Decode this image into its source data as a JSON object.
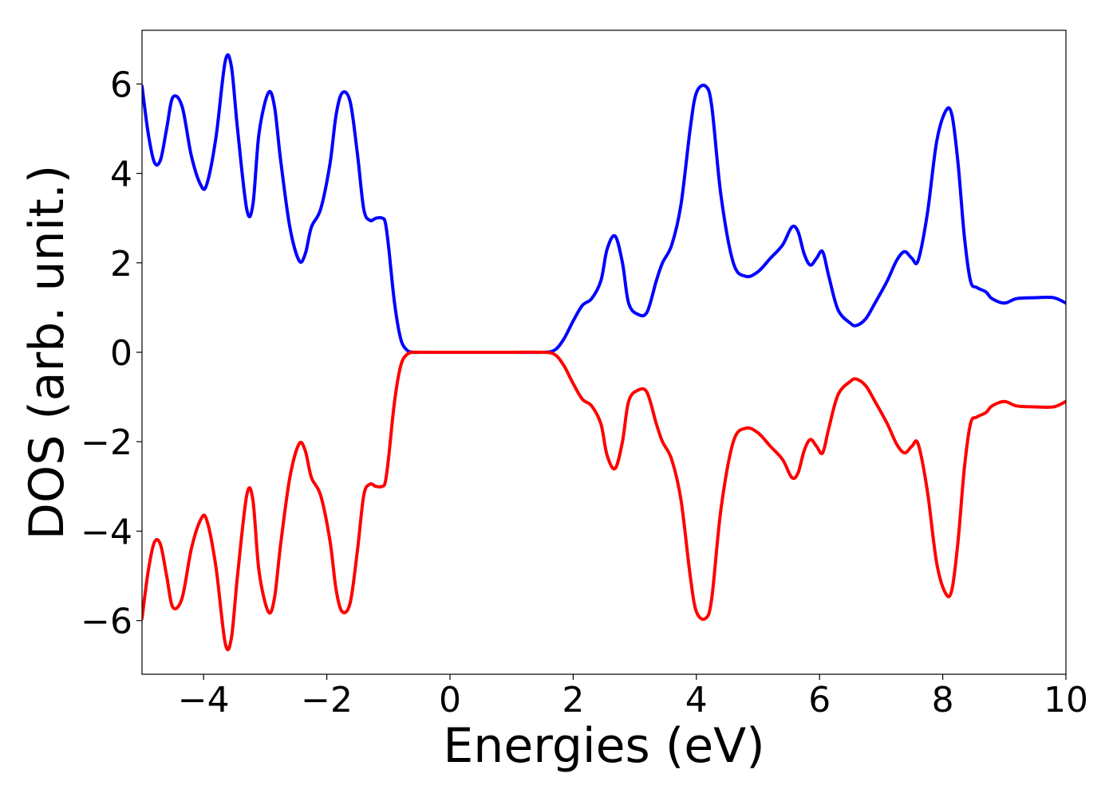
{
  "chart_data": {
    "type": "line",
    "xlabel": "Energies (eV)",
    "ylabel": "DOS (arb. unit.)",
    "xlim": [
      -5,
      10
    ],
    "ylim": [
      -7.2,
      7.2
    ],
    "grid": false,
    "xticks": [
      -4,
      -2,
      0,
      2,
      4,
      6,
      8,
      10
    ],
    "xtick_labels": [
      "−4",
      "−2",
      "0",
      "2",
      "4",
      "6",
      "8",
      "10"
    ],
    "yticks": [
      -6,
      -4,
      -2,
      0,
      2,
      4,
      6
    ],
    "ytick_labels": [
      "−6",
      "−4",
      "−2",
      "0",
      "2",
      "4",
      "6"
    ],
    "series": [
      {
        "color": "#0000ff",
        "x": [
          -5.0,
          -4.9,
          -4.8,
          -4.7,
          -4.6,
          -4.5,
          -4.35,
          -4.2,
          -4.05,
          -3.95,
          -3.8,
          -3.65,
          -3.55,
          -3.45,
          -3.3,
          -3.2,
          -3.1,
          -2.95,
          -2.85,
          -2.75,
          -2.6,
          -2.45,
          -2.35,
          -2.25,
          -2.1,
          -1.95,
          -1.85,
          -1.75,
          -1.62,
          -1.5,
          -1.4,
          -1.3,
          -1.2,
          -1.1,
          -1.05,
          -1.0,
          -0.9,
          -0.8,
          -0.7,
          -0.6,
          -0.5,
          -0.4,
          0.0,
          1.0,
          1.5,
          1.7,
          1.85,
          2.0,
          2.15,
          2.3,
          2.45,
          2.55,
          2.68,
          2.8,
          2.9,
          3.05,
          3.2,
          3.35,
          3.45,
          3.6,
          3.75,
          3.9,
          4.0,
          4.15,
          4.25,
          4.4,
          4.6,
          4.8,
          5.0,
          5.2,
          5.4,
          5.55,
          5.65,
          5.75,
          5.85,
          5.95,
          6.05,
          6.15,
          6.3,
          6.5,
          6.6,
          6.75,
          6.9,
          7.1,
          7.25,
          7.38,
          7.5,
          7.6,
          7.75,
          7.9,
          8.05,
          8.15,
          8.25,
          8.35,
          8.45,
          8.55,
          8.7,
          8.8,
          9.0,
          9.2,
          9.5,
          9.8,
          10.0
        ],
        "y": [
          5.95,
          4.9,
          4.25,
          4.3,
          5.0,
          5.7,
          5.5,
          4.4,
          3.75,
          3.75,
          4.8,
          6.5,
          6.4,
          5.0,
          3.2,
          3.3,
          4.9,
          5.8,
          5.5,
          4.3,
          2.8,
          2.05,
          2.2,
          2.8,
          3.2,
          4.2,
          5.3,
          5.8,
          5.6,
          4.4,
          3.2,
          2.95,
          3.0,
          3.0,
          2.9,
          2.4,
          1.1,
          0.3,
          0.05,
          0.0,
          0.0,
          0.0,
          0.0,
          0.0,
          0.0,
          0.05,
          0.3,
          0.7,
          1.05,
          1.2,
          1.6,
          2.3,
          2.6,
          2.0,
          1.1,
          0.85,
          0.9,
          1.6,
          2.0,
          2.4,
          3.3,
          5.0,
          5.8,
          5.95,
          5.5,
          3.5,
          2.0,
          1.7,
          1.8,
          2.1,
          2.4,
          2.8,
          2.7,
          2.2,
          1.95,
          2.1,
          2.25,
          1.7,
          0.95,
          0.65,
          0.6,
          0.75,
          1.1,
          1.6,
          2.05,
          2.25,
          2.1,
          2.05,
          3.1,
          4.7,
          5.4,
          5.3,
          4.2,
          2.6,
          1.6,
          1.45,
          1.35,
          1.2,
          1.1,
          1.2,
          1.22,
          1.22,
          1.1
        ]
      },
      {
        "color": "#ff0000",
        "x": [
          -5.0,
          -4.9,
          -4.8,
          -4.7,
          -4.6,
          -4.5,
          -4.35,
          -4.2,
          -4.05,
          -3.95,
          -3.8,
          -3.65,
          -3.55,
          -3.45,
          -3.3,
          -3.2,
          -3.1,
          -2.95,
          -2.85,
          -2.75,
          -2.6,
          -2.45,
          -2.35,
          -2.25,
          -2.1,
          -1.95,
          -1.85,
          -1.75,
          -1.62,
          -1.5,
          -1.4,
          -1.3,
          -1.2,
          -1.1,
          -1.05,
          -1.0,
          -0.9,
          -0.8,
          -0.7,
          -0.6,
          -0.5,
          -0.4,
          0.0,
          1.0,
          1.5,
          1.7,
          1.85,
          2.0,
          2.15,
          2.3,
          2.45,
          2.55,
          2.68,
          2.8,
          2.9,
          3.05,
          3.2,
          3.35,
          3.45,
          3.6,
          3.75,
          3.9,
          4.0,
          4.15,
          4.25,
          4.4,
          4.6,
          4.8,
          5.0,
          5.2,
          5.4,
          5.55,
          5.65,
          5.75,
          5.85,
          5.95,
          6.05,
          6.15,
          6.3,
          6.5,
          6.6,
          6.75,
          6.9,
          7.1,
          7.25,
          7.38,
          7.5,
          7.6,
          7.75,
          7.9,
          8.05,
          8.15,
          8.25,
          8.35,
          8.45,
          8.55,
          8.7,
          8.8,
          9.0,
          9.2,
          9.5,
          9.8,
          10.0
        ],
        "y": [
          -5.95,
          -4.9,
          -4.25,
          -4.3,
          -5.0,
          -5.7,
          -5.5,
          -4.4,
          -3.75,
          -3.75,
          -4.8,
          -6.5,
          -6.4,
          -5.0,
          -3.2,
          -3.3,
          -4.9,
          -5.8,
          -5.5,
          -4.3,
          -2.8,
          -2.05,
          -2.2,
          -2.8,
          -3.2,
          -4.2,
          -5.3,
          -5.8,
          -5.6,
          -4.4,
          -3.2,
          -2.95,
          -3.0,
          -3.0,
          -2.9,
          -2.4,
          -1.1,
          -0.3,
          -0.05,
          0.0,
          0.0,
          0.0,
          0.0,
          0.0,
          0.0,
          -0.05,
          -0.3,
          -0.7,
          -1.05,
          -1.2,
          -1.6,
          -2.3,
          -2.6,
          -2.0,
          -1.1,
          -0.85,
          -0.9,
          -1.6,
          -2.0,
          -2.4,
          -3.3,
          -5.0,
          -5.8,
          -5.95,
          -5.5,
          -3.5,
          -2.0,
          -1.7,
          -1.8,
          -2.1,
          -2.4,
          -2.8,
          -2.7,
          -2.2,
          -1.95,
          -2.1,
          -2.25,
          -1.7,
          -0.95,
          -0.65,
          -0.6,
          -0.75,
          -1.1,
          -1.6,
          -2.05,
          -2.25,
          -2.1,
          -2.05,
          -3.1,
          -4.7,
          -5.4,
          -5.3,
          -4.2,
          -2.6,
          -1.6,
          -1.45,
          -1.35,
          -1.2,
          -1.1,
          -1.2,
          -1.22,
          -1.22,
          -1.1
        ]
      }
    ]
  }
}
